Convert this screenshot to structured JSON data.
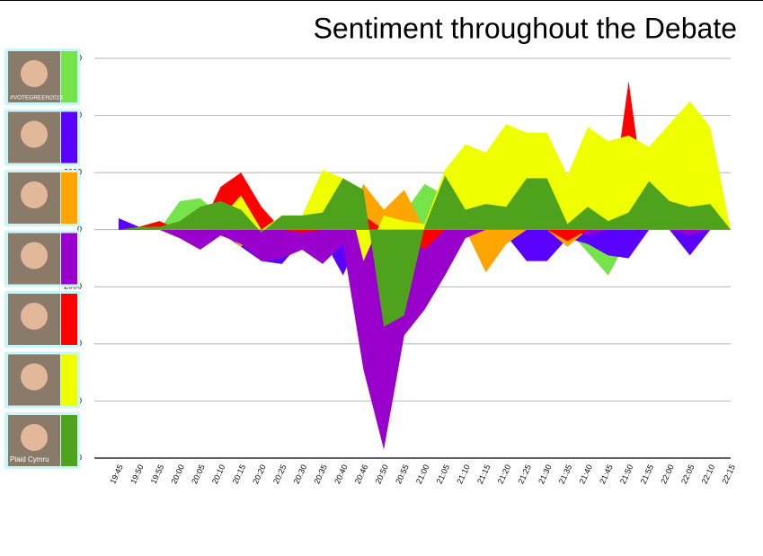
{
  "chart_data": {
    "type": "area",
    "title": "Sentiment throughout the Debate",
    "categories": [
      "19:45",
      "19:50",
      "19:55",
      "20:00",
      "20:05",
      "20:10",
      "20:15",
      "20:20",
      "20:25",
      "20:30",
      "20:35",
      "20:40",
      "20:46",
      "20:50",
      "20:55",
      "21:00",
      "21:05",
      "21:10",
      "21:15",
      "21:20",
      "21:25",
      "21:30",
      "21:35",
      "21:40",
      "21:45",
      "21:50",
      "21:55",
      "22:00",
      "22:05",
      "22:10",
      "22:15"
    ],
    "ylim": [
      -8000,
      6000
    ],
    "yticks": [
      -8000,
      -6000,
      -4000,
      -2000,
      0,
      2000,
      4000,
      6000
    ],
    "grid": true,
    "series": [
      {
        "name": "#VOTEGREEN2015",
        "color": "#77e34a",
        "values": [
          0,
          0,
          0,
          1000,
          1100,
          500,
          0,
          0,
          0,
          0,
          0,
          0,
          0,
          0,
          600,
          1600,
          1200,
          0,
          0,
          0,
          0,
          0,
          0,
          -800,
          -1600,
          -300,
          0,
          0,
          0,
          0,
          0
        ]
      },
      {
        "color": "#5a00ff",
        "values": [
          400,
          100,
          0,
          0,
          0,
          -100,
          -600,
          -1100,
          -1200,
          -400,
          -300,
          -1600,
          0,
          0,
          0,
          0,
          0,
          -200,
          0,
          -200,
          -1100,
          -1100,
          -300,
          -500,
          -900,
          -1000,
          0,
          0,
          -900,
          0,
          0
        ]
      },
      {
        "color": "#ffa500",
        "values": [
          0,
          0,
          0,
          0,
          0,
          0,
          -600,
          0,
          0,
          0,
          0,
          0,
          1600,
          700,
          1400,
          0,
          0,
          0,
          -1500,
          -500,
          0,
          0,
          -600,
          0,
          0,
          0,
          0,
          0,
          0,
          0,
          0
        ]
      },
      {
        "color": "#9900cc",
        "values": [
          0,
          0,
          0,
          -300,
          -700,
          -200,
          -500,
          -1100,
          -1000,
          -700,
          -1200,
          -500,
          -4900,
          -7700,
          -3700,
          -2800,
          -1600,
          -300,
          0,
          0,
          0,
          0,
          0,
          -200,
          0,
          0,
          0,
          0,
          -200,
          0,
          0
        ]
      },
      {
        "color": "#ff0000",
        "values": [
          0,
          100,
          300,
          0,
          0,
          1500,
          2000,
          800,
          0,
          -100,
          0,
          0,
          500,
          0,
          0,
          -700,
          0,
          0,
          0,
          0,
          0,
          0,
          -400,
          0,
          0,
          5200,
          0,
          0,
          0,
          0,
          0
        ]
      },
      {
        "color": "#f0ff00",
        "values": [
          0,
          0,
          100,
          200,
          300,
          400,
          1200,
          0,
          500,
          500,
          2100,
          1800,
          -1100,
          500,
          300,
          200,
          2100,
          3000,
          2700,
          3700,
          3400,
          3400,
          1900,
          3600,
          3100,
          3300,
          2900,
          3700,
          4500,
          3600,
          0
        ]
      },
      {
        "name": "Plaid Cymru",
        "color": "#4fa21b",
        "values": [
          0,
          100,
          100,
          300,
          800,
          1000,
          700,
          -100,
          500,
          500,
          600,
          1800,
          1400,
          -3400,
          -3000,
          100,
          1900,
          700,
          900,
          800,
          1800,
          1800,
          200,
          800,
          300,
          600,
          1700,
          1000,
          800,
          900,
          0
        ]
      }
    ]
  }
}
